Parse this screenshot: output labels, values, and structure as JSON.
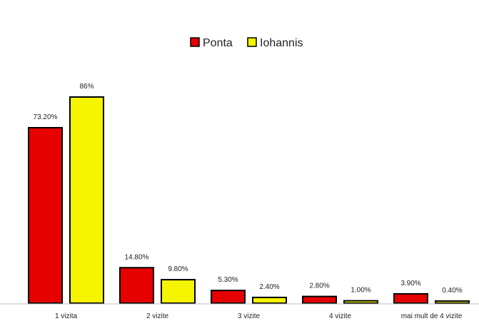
{
  "chart_data": {
    "type": "bar",
    "title": "",
    "xlabel": "",
    "ylabel": "",
    "categories": [
      "1 vizita",
      "2 vizite",
      "3 vizite",
      "4 vizite",
      "mai mult de 4 vizite"
    ],
    "series": [
      {
        "name": "Ponta",
        "color": "#e60000",
        "values": [
          73.2,
          14.8,
          5.3,
          2.8,
          3.9
        ],
        "labels": [
          "73.20%",
          "14.80%",
          "5.30%",
          "2.80%",
          "3.90%"
        ]
      },
      {
        "name": "Iohannis",
        "color": "#f5f500",
        "values": [
          86,
          9.8,
          2.4,
          1.0,
          0.4
        ],
        "labels": [
          "86%",
          "9.80%",
          "2.40%",
          "1.00%",
          "0.40%"
        ]
      }
    ],
    "ylim": [
      0,
      86
    ],
    "grid": false,
    "legend_position": "top-center"
  }
}
